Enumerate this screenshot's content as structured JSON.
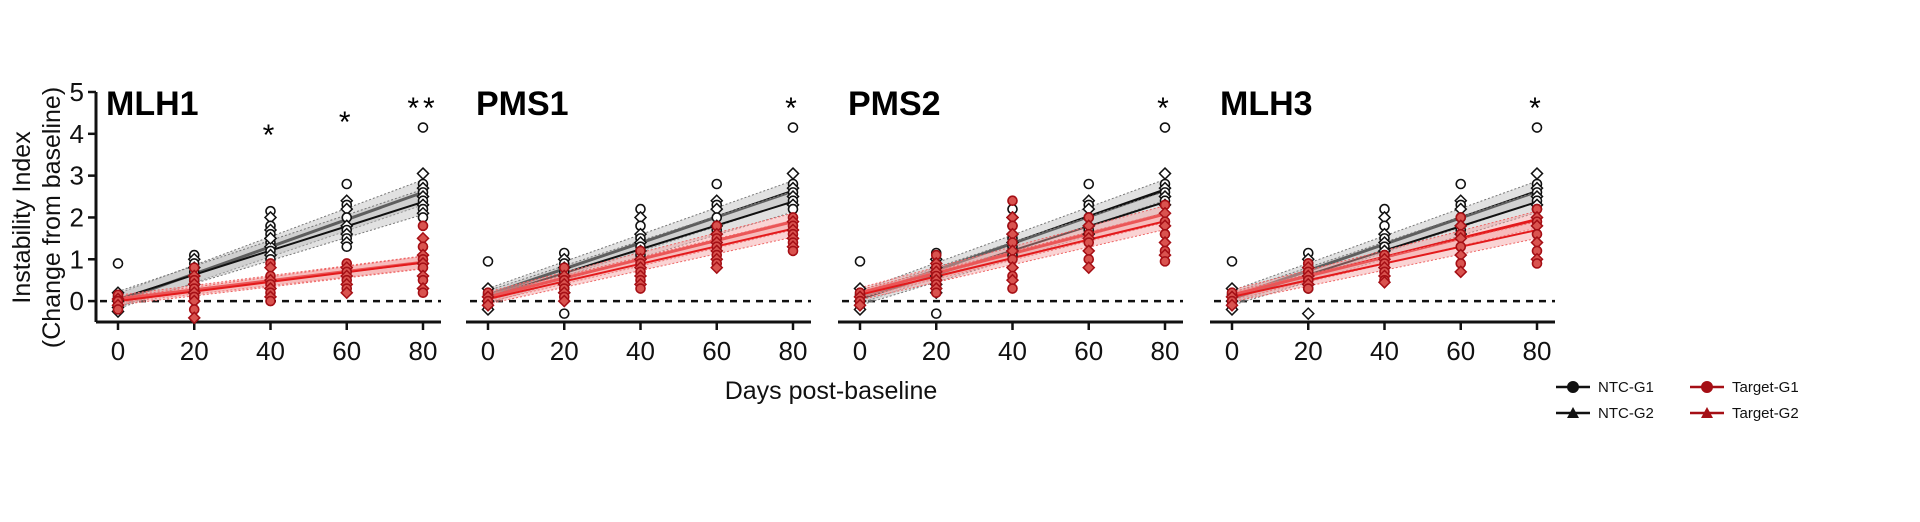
{
  "chart_data": {
    "type": "scatter",
    "xlabel": "Days post-baseline",
    "ylabel": [
      "Instability Index",
      "(Change from baseline)"
    ],
    "xlim": [
      0,
      80
    ],
    "ylim": [
      -0.5,
      5
    ],
    "xticks": [
      0,
      20,
      40,
      60,
      80
    ],
    "yticks": [
      0,
      1,
      2,
      3,
      4,
      5
    ],
    "baseline": 0,
    "colors": {
      "ntc": "#111111",
      "target": "#e31a1c",
      "target_marker": "#a50f15",
      "ntc_band": "#bdbdbd",
      "target_band": "#f4a0a0"
    },
    "legend": {
      "position": "bottom-right",
      "entries": [
        {
          "label": "NTC-G1",
          "marker": "circle",
          "color": "#111111"
        },
        {
          "label": "Target-G1",
          "marker": "circle",
          "color": "#a50f15"
        },
        {
          "label": "NTC-G2",
          "marker": "triangle",
          "color": "#111111"
        },
        {
          "label": "Target-G2",
          "marker": "triangle",
          "color": "#a50f15"
        }
      ]
    },
    "panels": [
      {
        "title": "MLH1",
        "significance": [
          {
            "x": 40,
            "label": "*"
          },
          {
            "x": 60,
            "label": "*"
          },
          {
            "x": 80,
            "label": "**"
          }
        ],
        "series": [
          {
            "name": "NTC-G1",
            "intercept": 0.0,
            "slope": 0.0325,
            "band": 0.3
          },
          {
            "name": "NTC-G2",
            "intercept": 0.05,
            "slope": 0.029,
            "band": 0.3
          },
          {
            "name": "Target-G1",
            "intercept": 0.05,
            "slope": 0.011,
            "band": 0.15
          },
          {
            "name": "Target-G2",
            "intercept": 0.0,
            "slope": 0.0115,
            "band": 0.15
          }
        ],
        "points": {
          "ntc": {
            "0": [
              0.9,
              0.2,
              0.1,
              0.0,
              -0.1,
              -0.25,
              0.05,
              -0.15
            ],
            "20": [
              1.1,
              1.0,
              0.9,
              0.8,
              0.7,
              0.6,
              0.5,
              0.4,
              0.3,
              0.2,
              0.1,
              0.0,
              0.5
            ],
            "40": [
              2.15,
              2.0,
              1.8,
              1.7,
              1.6,
              1.5,
              1.4,
              1.3,
              1.2,
              1.1,
              1.0,
              1.5
            ],
            "60": [
              2.8,
              2.4,
              2.3,
              2.2,
              2.0,
              1.8,
              1.7,
              1.6,
              1.5,
              1.4,
              1.3
            ],
            "80": [
              4.15,
              3.05,
              2.8,
              2.7,
              2.6,
              2.5,
              2.4,
              2.3,
              2.2,
              2.1,
              2.0
            ]
          },
          "target": {
            "0": [
              0.15,
              0.05,
              0.0,
              -0.1,
              -0.2
            ],
            "20": [
              0.8,
              0.6,
              0.5,
              0.4,
              0.3,
              0.2,
              0.1,
              0.0,
              -0.2,
              -0.4
            ],
            "40": [
              0.9,
              0.8,
              0.6,
              0.5,
              0.4,
              0.3,
              0.2,
              0.1,
              0.0
            ],
            "60": [
              0.9,
              0.8,
              0.7,
              0.6,
              0.5,
              0.4,
              0.3,
              0.2
            ],
            "80": [
              1.8,
              1.5,
              1.3,
              1.1,
              1.0,
              0.9,
              0.8,
              0.6,
              0.5,
              0.3,
              0.2
            ]
          }
        }
      },
      {
        "title": "PMS1",
        "significance": [
          {
            "x": 80,
            "label": "*"
          }
        ],
        "series": [
          {
            "name": "NTC-G1",
            "intercept": 0.15,
            "slope": 0.031,
            "band": 0.25
          },
          {
            "name": "NTC-G2",
            "intercept": 0.1,
            "slope": 0.0285,
            "band": 0.25
          },
          {
            "name": "Target-G1",
            "intercept": 0.1,
            "slope": 0.0225,
            "band": 0.2
          },
          {
            "name": "Target-G2",
            "intercept": 0.05,
            "slope": 0.021,
            "band": 0.2
          }
        ],
        "points": {
          "ntc": {
            "0": [
              0.95,
              0.3,
              0.15,
              0.0,
              -0.1,
              -0.2
            ],
            "20": [
              1.15,
              1.0,
              0.9,
              0.8,
              0.7,
              0.6,
              0.5,
              0.4,
              0.3,
              0.2,
              -0.3
            ],
            "40": [
              2.2,
              2.0,
              1.8,
              1.6,
              1.5,
              1.4,
              1.3,
              1.2,
              1.1,
              1.0
            ],
            "60": [
              2.8,
              2.4,
              2.3,
              2.2,
              2.0,
              1.8,
              1.7,
              1.6
            ],
            "80": [
              4.15,
              3.05,
              2.8,
              2.7,
              2.6,
              2.5,
              2.4,
              2.3,
              2.2
            ]
          },
          "target": {
            "0": [
              0.2,
              0.1,
              0.0,
              -0.1
            ],
            "20": [
              0.8,
              0.6,
              0.5,
              0.4,
              0.3,
              0.2,
              0.1,
              0.0
            ],
            "40": [
              1.2,
              1.0,
              0.9,
              0.8,
              0.7,
              0.6,
              0.5,
              0.4,
              0.3
            ],
            "60": [
              1.8,
              1.6,
              1.5,
              1.4,
              1.3,
              1.2,
              1.1,
              1.0,
              0.9,
              0.8
            ],
            "80": [
              2.0,
              1.9,
              1.8,
              1.7,
              1.6,
              1.5,
              1.4,
              1.3,
              1.2
            ]
          }
        }
      },
      {
        "title": "PMS2",
        "significance": [
          {
            "x": 80,
            "label": "*"
          }
        ],
        "series": [
          {
            "name": "NTC-G1",
            "intercept": 0.1,
            "slope": 0.032,
            "band": 0.25
          },
          {
            "name": "NTC-G2",
            "intercept": 0.05,
            "slope": 0.029,
            "band": 0.25
          },
          {
            "name": "Target-G1",
            "intercept": 0.2,
            "slope": 0.0235,
            "band": 0.2
          },
          {
            "name": "Target-G2",
            "intercept": 0.15,
            "slope": 0.022,
            "band": 0.2
          }
        ],
        "points": {
          "ntc": {
            "0": [
              0.95,
              0.3,
              0.15,
              0.0,
              -0.1,
              -0.2
            ],
            "20": [
              1.15,
              1.0,
              0.9,
              0.8,
              0.7,
              0.6,
              0.5,
              0.4,
              0.3,
              0.2,
              -0.3
            ],
            "40": [
              2.2,
              2.0,
              1.8,
              1.6,
              1.5,
              1.4,
              1.3,
              1.2,
              1.1
            ],
            "60": [
              2.8,
              2.4,
              2.3,
              2.2,
              2.0,
              1.8,
              1.7,
              1.6
            ],
            "80": [
              4.15,
              3.05,
              2.8,
              2.7,
              2.6,
              2.5,
              2.4,
              2.3
            ]
          },
          "target": {
            "0": [
              0.2,
              0.1,
              0.0,
              -0.1
            ],
            "20": [
              1.1,
              0.9,
              0.8,
              0.7,
              0.6,
              0.5,
              0.4,
              0.3,
              0.2
            ],
            "40": [
              2.4,
              2.0,
              1.8,
              1.6,
              1.4,
              1.2,
              1.0,
              0.8,
              0.6,
              0.5,
              0.3
            ],
            "60": [
              2.0,
              1.8,
              1.6,
              1.5,
              1.4,
              1.2,
              1.0,
              0.8
            ],
            "80": [
              2.3,
              2.1,
              1.9,
              1.8,
              1.6,
              1.4,
              1.2,
              1.1,
              0.95
            ]
          }
        }
      },
      {
        "title": "MLH3",
        "significance": [
          {
            "x": 80,
            "label": "*"
          }
        ],
        "series": [
          {
            "name": "NTC-G1",
            "intercept": 0.1,
            "slope": 0.0315,
            "band": 0.25
          },
          {
            "name": "NTC-G2",
            "intercept": 0.05,
            "slope": 0.029,
            "band": 0.25
          },
          {
            "name": "Target-G1",
            "intercept": 0.15,
            "slope": 0.0225,
            "band": 0.2
          },
          {
            "name": "Target-G2",
            "intercept": 0.1,
            "slope": 0.02,
            "band": 0.2
          }
        ],
        "points": {
          "ntc": {
            "0": [
              0.95,
              0.3,
              0.15,
              0.0,
              -0.1,
              -0.2
            ],
            "20": [
              1.15,
              1.0,
              0.9,
              0.8,
              0.7,
              0.6,
              0.5,
              0.4,
              0.3,
              -0.3
            ],
            "40": [
              2.2,
              2.0,
              1.8,
              1.6,
              1.5,
              1.4,
              1.3,
              1.2,
              1.1
            ],
            "60": [
              2.8,
              2.4,
              2.3,
              2.2,
              2.0,
              1.8,
              1.7,
              1.6
            ],
            "80": [
              4.15,
              3.05,
              2.8,
              2.7,
              2.6,
              2.5,
              2.4,
              2.3,
              2.2
            ]
          },
          "target": {
            "0": [
              0.2,
              0.1,
              0.0,
              -0.1
            ],
            "20": [
              0.9,
              0.8,
              0.7,
              0.6,
              0.5,
              0.4,
              0.3
            ],
            "40": [
              1.1,
              1.0,
              0.9,
              0.8,
              0.7,
              0.6,
              0.5,
              0.45
            ],
            "60": [
              2.0,
              1.8,
              1.6,
              1.5,
              1.3,
              1.1,
              0.9,
              0.7
            ],
            "80": [
              2.2,
              2.0,
              1.9,
              1.8,
              1.6,
              1.4,
              1.2,
              1.0,
              0.9
            ]
          }
        }
      }
    ]
  }
}
